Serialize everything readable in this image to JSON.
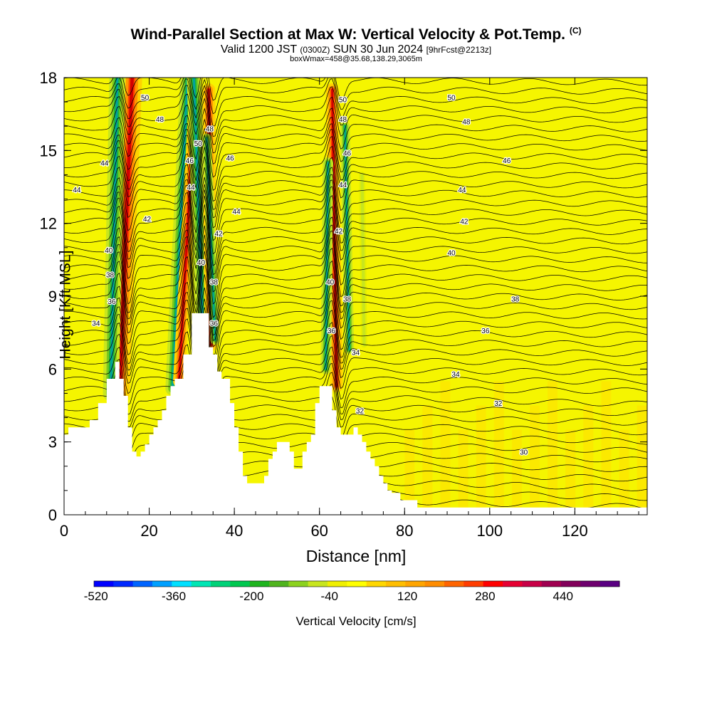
{
  "chart_data": {
    "type": "heatmap",
    "title": "Wind-Parallel Section at Max W: Vertical Velocity & Pot.Temp.",
    "title_units": "(C)",
    "subtitle_valid": "Valid 1200 JST",
    "subtitle_utc": "(0300Z)",
    "subtitle_date": "SUN 30 Jun 2024",
    "subtitle_fcst": "[9hrFcst@2213z]",
    "subtitle_box": "boxWmax=458@35.68,138.29,3065m",
    "xlabel": "Distance [nm]",
    "ylabel": "Height [Kft MSL]",
    "xlim": [
      0,
      137
    ],
    "ylim": [
      0,
      18
    ],
    "x_ticks": [
      "0",
      "20",
      "40",
      "60",
      "80",
      "100",
      "120"
    ],
    "x_tick_values": [
      0,
      20,
      40,
      60,
      80,
      100,
      120
    ],
    "y_ticks": [
      "0",
      "3",
      "6",
      "9",
      "12",
      "15",
      "18"
    ],
    "y_tick_values": [
      0,
      3,
      6,
      9,
      12,
      15,
      18
    ],
    "colorbar": {
      "label": "Vertical Velocity [cm/s]",
      "tick_labels": [
        "-520",
        "-360",
        "-200",
        "-40",
        "120",
        "280",
        "440"
      ],
      "colors": [
        "#0000ff",
        "#0028ff",
        "#0064ff",
        "#00a0ff",
        "#00e0ff",
        "#00e6b4",
        "#00d278",
        "#00c850",
        "#1eb41e",
        "#50b41e",
        "#8cd21e",
        "#c8e61e",
        "#f0f000",
        "#ffff00",
        "#ffd700",
        "#ffbe00",
        "#ffa500",
        "#ff8c00",
        "#ff6400",
        "#ff3c00",
        "#ff0000",
        "#e60032",
        "#c80046",
        "#a00050",
        "#82005a",
        "#6e006e",
        "#5a0082"
      ]
    },
    "background_color": "#f5f500",
    "terrain_profile": {
      "x": [
        0,
        1,
        1,
        2,
        2,
        6,
        6,
        8,
        8,
        10,
        10,
        12,
        12,
        13,
        13,
        14,
        14,
        15,
        15,
        16,
        16,
        17,
        17,
        18,
        18,
        19,
        19,
        20,
        20,
        21,
        21,
        22,
        22,
        23,
        23,
        24,
        24,
        25,
        25,
        26,
        26,
        28,
        28,
        30,
        30,
        33,
        33,
        34,
        34,
        35,
        35,
        36,
        36,
        37,
        37,
        39,
        39,
        40,
        40,
        41,
        41,
        42,
        42,
        43,
        43,
        44,
        44,
        47,
        47,
        48,
        48,
        49,
        49,
        50,
        50,
        53,
        53,
        54,
        54,
        55,
        55,
        56,
        56,
        57,
        57,
        58,
        58,
        59,
        59,
        60,
        60,
        63,
        63,
        64,
        64,
        65,
        65,
        68,
        68,
        69,
        69,
        70,
        70,
        71,
        71,
        72,
        72,
        73,
        73,
        74,
        74,
        75,
        75,
        76,
        76,
        77,
        77,
        78,
        78,
        79,
        79,
        80,
        80,
        81,
        81,
        83,
        83,
        84,
        84,
        86,
        86,
        89,
        89,
        91,
        91,
        137
      ],
      "y": [
        3.3,
        3.3,
        3.6,
        3.6,
        3.6,
        3.6,
        3.9,
        3.9,
        4.6,
        4.6,
        5.6,
        5.6,
        6.3,
        6.3,
        5.6,
        5.6,
        4.9,
        4.9,
        3.6,
        3.6,
        2.6,
        2.6,
        2.4,
        2.4,
        2.6,
        2.6,
        2.9,
        2.9,
        3.3,
        3.3,
        3.6,
        3.6,
        3.9,
        3.9,
        4.3,
        4.3,
        4.9,
        4.9,
        5.3,
        5.3,
        5.6,
        5.6,
        6.6,
        6.6,
        8.3,
        8.3,
        8.3,
        8.3,
        6.9,
        6.9,
        6.6,
        6.6,
        5.9,
        5.9,
        5.6,
        5.6,
        4.6,
        4.6,
        3.6,
        3.6,
        2.6,
        2.6,
        1.6,
        1.6,
        1.3,
        1.3,
        1.3,
        1.3,
        1.6,
        1.6,
        2.3,
        2.3,
        2.6,
        2.6,
        3.0,
        3.0,
        2.6,
        2.6,
        1.9,
        1.9,
        1.9,
        1.9,
        2.6,
        2.6,
        3.0,
        3.0,
        3.3,
        3.3,
        4.6,
        4.6,
        5.3,
        5.3,
        4.3,
        4.3,
        3.6,
        3.6,
        3.3,
        3.3,
        3.6,
        3.6,
        3.3,
        3.3,
        3.0,
        3.0,
        2.6,
        2.6,
        2.3,
        2.3,
        2.0,
        2.0,
        1.6,
        1.6,
        1.3,
        1.3,
        1.0,
        1.0,
        0.9,
        0.9,
        0.9,
        0.9,
        0.6,
        0.6,
        0.6,
        0.6,
        0.6,
        0.6,
        0.3,
        0.3,
        0.3,
        0.3,
        0.3,
        0.3,
        0.3,
        0.3,
        0.3,
        0.3
      ]
    },
    "contour_labels": [
      {
        "text": "50",
        "x": 19,
        "y": 17.2
      },
      {
        "text": "48",
        "x": 22.5,
        "y": 16.3
      },
      {
        "text": "44",
        "x": 3,
        "y": 13.4
      },
      {
        "text": "44",
        "x": 9.5,
        "y": 14.5
      },
      {
        "text": "42",
        "x": 19.5,
        "y": 12.2
      },
      {
        "text": "40",
        "x": 10.5,
        "y": 10.9
      },
      {
        "text": "38",
        "x": 10.8,
        "y": 9.9
      },
      {
        "text": "36",
        "x": 11.2,
        "y": 8.8
      },
      {
        "text": "34",
        "x": 7.5,
        "y": 7.9
      },
      {
        "text": "50",
        "x": 31.5,
        "y": 15.3
      },
      {
        "text": "48",
        "x": 34.2,
        "y": 15.9
      },
      {
        "text": "46",
        "x": 29.5,
        "y": 14.6
      },
      {
        "text": "44",
        "x": 29.8,
        "y": 13.5
      },
      {
        "text": "46",
        "x": 39,
        "y": 14.7
      },
      {
        "text": "44",
        "x": 40.5,
        "y": 12.5
      },
      {
        "text": "42",
        "x": 36.3,
        "y": 11.6
      },
      {
        "text": "40",
        "x": 32.2,
        "y": 10.4
      },
      {
        "text": "38",
        "x": 35.2,
        "y": 9.6
      },
      {
        "text": "36",
        "x": 35.2,
        "y": 7.9
      },
      {
        "text": "50",
        "x": 65.5,
        "y": 17.1
      },
      {
        "text": "48",
        "x": 65.5,
        "y": 16.3
      },
      {
        "text": "46",
        "x": 66.5,
        "y": 14.9
      },
      {
        "text": "44",
        "x": 65.5,
        "y": 13.6
      },
      {
        "text": "42",
        "x": 64.5,
        "y": 11.7
      },
      {
        "text": "40",
        "x": 62.5,
        "y": 9.6
      },
      {
        "text": "38",
        "x": 66.5,
        "y": 8.9
      },
      {
        "text": "36",
        "x": 62.8,
        "y": 7.6
      },
      {
        "text": "34",
        "x": 68.5,
        "y": 6.7
      },
      {
        "text": "32",
        "x": 69.5,
        "y": 4.3
      },
      {
        "text": "50",
        "x": 91,
        "y": 17.2
      },
      {
        "text": "48",
        "x": 94.5,
        "y": 16.2
      },
      {
        "text": "46",
        "x": 104,
        "y": 14.6
      },
      {
        "text": "44",
        "x": 93.5,
        "y": 13.4
      },
      {
        "text": "42",
        "x": 94,
        "y": 12.1
      },
      {
        "text": "40",
        "x": 91,
        "y": 10.8
      },
      {
        "text": "38",
        "x": 106,
        "y": 8.9
      },
      {
        "text": "36",
        "x": 99,
        "y": 7.6
      },
      {
        "text": "34",
        "x": 92,
        "y": 5.8
      },
      {
        "text": "32",
        "x": 102,
        "y": 4.6
      },
      {
        "text": "30",
        "x": 108,
        "y": 2.6
      }
    ],
    "updraft_bands": [
      {
        "x0": 13,
        "y0": 5.0,
        "x1": 16,
        "y1": 18,
        "w": 2.5,
        "sign": "up"
      },
      {
        "x0": 11,
        "y0": 5.0,
        "x1": 12.5,
        "y1": 18,
        "w": 2.0,
        "sign": "down"
      },
      {
        "x0": 25.5,
        "y0": 5.2,
        "x1": 29,
        "y1": 18,
        "w": 1.8,
        "sign": "down"
      },
      {
        "x0": 27,
        "y0": 5.5,
        "x1": 31,
        "y1": 18,
        "w": 1.5,
        "sign": "up"
      },
      {
        "x0": 32.5,
        "y0": 8.2,
        "x1": 30.5,
        "y1": 18,
        "w": 1.8,
        "sign": "down"
      },
      {
        "x0": 34.5,
        "y0": 7.0,
        "x1": 34,
        "y1": 17.5,
        "w": 1.6,
        "sign": "up"
      },
      {
        "x0": 35.5,
        "y0": 7.2,
        "x1": 33.5,
        "y1": 15.5,
        "w": 1.2,
        "sign": "down"
      },
      {
        "x0": 64.0,
        "y0": 5.3,
        "x1": 63.0,
        "y1": 17.5,
        "w": 1.6,
        "sign": "up"
      },
      {
        "x0": 61.5,
        "y0": 6.0,
        "x1": 62.0,
        "y1": 14.5,
        "w": 1.3,
        "sign": "down"
      },
      {
        "x0": 67.0,
        "y0": 6.8,
        "x1": 66.0,
        "y1": 16.0,
        "w": 1.2,
        "sign": "down"
      },
      {
        "x0": 70.5,
        "y0": 7.0,
        "x1": 70.0,
        "y1": 14.0,
        "w": 1.0,
        "sign": "weak"
      }
    ]
  }
}
